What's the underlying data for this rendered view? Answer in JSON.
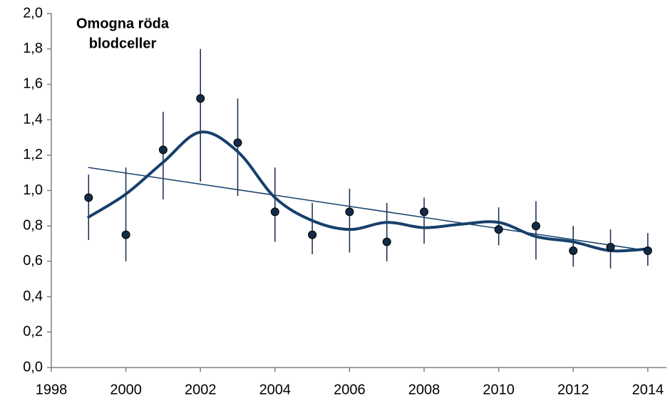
{
  "chart_data": {
    "type": "errorbar",
    "title": [
      "Omogna röda",
      "blodceller"
    ],
    "x": [
      1999,
      2000,
      2001,
      2002,
      2003,
      2004,
      2005,
      2006,
      2007,
      2008,
      2010,
      2011,
      2012,
      2013,
      2014
    ],
    "values": [
      0.96,
      0.75,
      1.23,
      1.52,
      1.27,
      0.88,
      0.75,
      0.88,
      0.71,
      0.88,
      0.78,
      0.8,
      0.66,
      0.68,
      0.66
    ],
    "low": [
      0.72,
      0.6,
      0.95,
      1.05,
      0.97,
      0.71,
      0.64,
      0.65,
      0.6,
      0.7,
      0.69,
      0.61,
      0.57,
      0.56,
      0.575
    ],
    "high": [
      1.09,
      1.13,
      1.445,
      1.8,
      1.52,
      1.13,
      0.93,
      1.01,
      0.93,
      0.96,
      0.905,
      0.94,
      0.8,
      0.78,
      0.76
    ],
    "color": "#142a46",
    "smooth": {
      "color": "#17406b",
      "x": [
        1999,
        2000,
        2001,
        2002,
        2003,
        2004,
        2005,
        2006,
        2007,
        2008,
        2009,
        2010,
        2011,
        2012,
        2013,
        2014
      ],
      "values": [
        0.85,
        0.98,
        1.16,
        1.33,
        1.22,
        0.96,
        0.83,
        0.78,
        0.82,
        0.79,
        0.81,
        0.82,
        0.74,
        0.71,
        0.66,
        0.67
      ]
    },
    "trend": {
      "color": "#17406b",
      "x": [
        1999,
        2014
      ],
      "values": [
        1.13,
        0.66
      ]
    },
    "xlim": [
      1998,
      2014.5
    ],
    "xticks": [
      1998,
      2000,
      2002,
      2004,
      2006,
      2008,
      2010,
      2012,
      2014
    ],
    "ylim": [
      0,
      2
    ],
    "yticks": [
      {
        "value": 0,
        "label": "0,0"
      },
      {
        "value": 0.2,
        "label": "0,2"
      },
      {
        "value": 0.4,
        "label": "0,4"
      },
      {
        "value": 0.6,
        "label": "0,6"
      },
      {
        "value": 0.8,
        "label": "0,8"
      },
      {
        "value": 1,
        "label": "1,0"
      },
      {
        "value": 1.2,
        "label": "1,2"
      },
      {
        "value": 1.4,
        "label": "1,4"
      },
      {
        "value": 1.6,
        "label": "1,6"
      },
      {
        "value": 1.8,
        "label": "1,8"
      },
      {
        "value": 2,
        "label": "2,0"
      }
    ]
  }
}
